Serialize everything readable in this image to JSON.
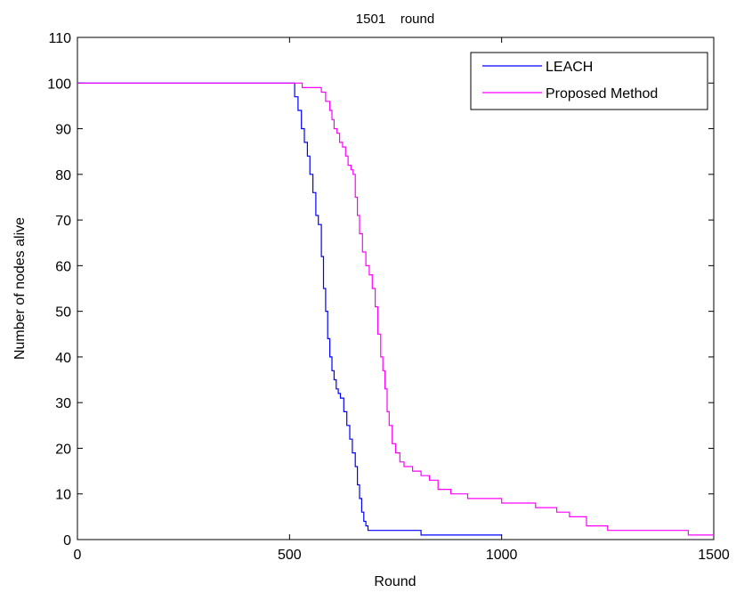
{
  "chart_data": {
    "type": "line",
    "title": "1501    round",
    "xlabel": "Round",
    "ylabel": "Number of nodes alive",
    "xlim": [
      0,
      1500
    ],
    "ylim": [
      0,
      110
    ],
    "xticks": [
      0,
      500,
      1000,
      1500
    ],
    "yticks": [
      0,
      10,
      20,
      30,
      40,
      50,
      60,
      70,
      80,
      90,
      100,
      110
    ],
    "grid": false,
    "legend_position": "top-right",
    "series": [
      {
        "name": "LEACH",
        "color": "#0000ff",
        "x": [
          0,
          505,
          512,
          520,
          528,
          535,
          542,
          548,
          555,
          562,
          568,
          575,
          580,
          585,
          590,
          595,
          600,
          605,
          610,
          615,
          620,
          628,
          635,
          642,
          648,
          655,
          660,
          665,
          670,
          675,
          680,
          685,
          690,
          700,
          720,
          810,
          1000
        ],
        "values": [
          100,
          100,
          97,
          94,
          90,
          87,
          84,
          80,
          76,
          71,
          69,
          62,
          55,
          50,
          44,
          40,
          37,
          35,
          33,
          32,
          31,
          28,
          25,
          22,
          19,
          16,
          12,
          9,
          6,
          4,
          3,
          2,
          2,
          2,
          2,
          1,
          1
        ]
      },
      {
        "name": "Proposed Method",
        "color": "#ff00ff",
        "x": [
          0,
          510,
          530,
          560,
          575,
          585,
          595,
          600,
          605,
          612,
          618,
          625,
          632,
          638,
          645,
          650,
          655,
          660,
          665,
          672,
          680,
          688,
          695,
          702,
          708,
          715,
          720,
          725,
          730,
          735,
          742,
          750,
          760,
          770,
          790,
          810,
          830,
          850,
          880,
          920,
          1000,
          1050,
          1080,
          1100,
          1130,
          1160,
          1200,
          1250,
          1350,
          1420,
          1440,
          1500
        ],
        "values": [
          100,
          100,
          99,
          99,
          98,
          96,
          94,
          92,
          90,
          89,
          87,
          86,
          84,
          82,
          81,
          80,
          75,
          71,
          67,
          63,
          60,
          58,
          55,
          51,
          45,
          40,
          37,
          33,
          28,
          25,
          21,
          19,
          17,
          16,
          15,
          14,
          13,
          11,
          10,
          9,
          8,
          8,
          7,
          7,
          6,
          5,
          3,
          2,
          2,
          2,
          1,
          1
        ]
      }
    ]
  }
}
